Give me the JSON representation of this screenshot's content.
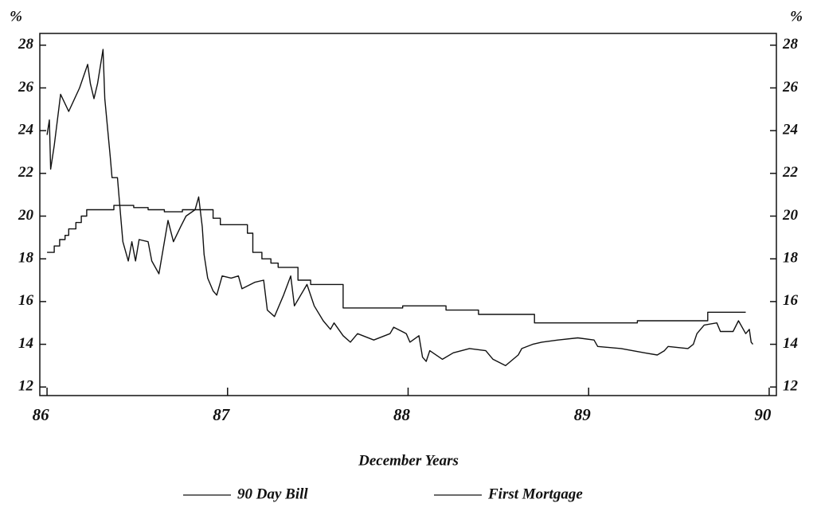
{
  "chart_data": {
    "type": "line",
    "xlabel": "December Years",
    "ylabel": "%",
    "y2label": "%",
    "xlim": [
      85.96,
      90.04
    ],
    "xticks": [
      86,
      87,
      88,
      89,
      90
    ],
    "ylim": [
      11.6,
      28.55
    ],
    "yticks": [
      12,
      14,
      16,
      18,
      20,
      22,
      24,
      26,
      28
    ],
    "y2lim": [
      11.6,
      28.55
    ],
    "y2ticks": [
      12,
      14,
      16,
      18,
      20,
      22,
      24,
      26,
      28
    ],
    "series": [
      {
        "name": "90 Day Bill",
        "color": "#111111",
        "x": [
          86.0,
          86.013,
          86.02,
          86.04,
          86.075,
          86.12,
          86.18,
          86.225,
          86.24,
          86.26,
          86.28,
          86.31,
          86.32,
          86.35,
          86.36,
          86.39,
          86.41,
          86.42,
          86.45,
          86.47,
          86.49,
          86.51,
          86.56,
          86.58,
          86.62,
          86.67,
          86.7,
          86.74,
          86.77,
          86.82,
          86.84,
          86.86,
          86.87,
          86.89,
          86.92,
          86.94,
          86.97,
          87.02,
          87.06,
          87.08,
          87.15,
          87.2,
          87.22,
          87.26,
          87.31,
          87.35,
          87.37,
          87.44,
          87.48,
          87.53,
          87.57,
          87.59,
          87.64,
          87.68,
          87.72,
          87.81,
          87.9,
          87.92,
          87.99,
          88.01,
          88.06,
          88.08,
          88.1,
          88.12,
          88.19,
          88.25,
          88.34,
          88.43,
          88.47,
          88.54,
          88.61,
          88.63,
          88.69,
          88.74,
          88.83,
          88.94,
          89.03,
          89.05,
          89.18,
          89.31,
          89.38,
          89.42,
          89.44,
          89.55,
          89.58,
          89.6,
          89.64,
          89.71,
          89.73,
          89.8,
          89.83,
          89.87,
          89.89,
          89.9,
          89.91
        ],
        "values": [
          23.8,
          24.5,
          22.2,
          23.3,
          25.7,
          24.9,
          26.0,
          27.1,
          26.2,
          25.5,
          26.2,
          27.8,
          25.5,
          22.8,
          21.8,
          21.8,
          19.8,
          18.8,
          17.9,
          18.8,
          17.9,
          18.9,
          18.8,
          17.9,
          17.3,
          19.8,
          18.8,
          19.5,
          20.0,
          20.3,
          20.9,
          19.5,
          18.2,
          17.1,
          16.5,
          16.3,
          17.2,
          17.1,
          17.2,
          16.6,
          16.9,
          17.0,
          15.6,
          15.3,
          16.3,
          17.2,
          15.8,
          16.8,
          15.8,
          15.1,
          14.7,
          15.0,
          14.4,
          14.1,
          14.5,
          14.2,
          14.5,
          14.8,
          14.5,
          14.1,
          14.4,
          13.4,
          13.2,
          13.7,
          13.3,
          13.6,
          13.8,
          13.7,
          13.3,
          13.0,
          13.5,
          13.8,
          14.0,
          14.1,
          14.2,
          14.3,
          14.2,
          13.9,
          13.8,
          13.6,
          13.5,
          13.7,
          13.9,
          13.8,
          14.0,
          14.5,
          14.9,
          15.0,
          14.6,
          14.6,
          15.1,
          14.5,
          14.7,
          14.1,
          14.0
        ]
      },
      {
        "name": "First Mortgage",
        "color": "#111111",
        "x": [
          86.0,
          86.04,
          86.04,
          86.07,
          86.07,
          86.1,
          86.1,
          86.12,
          86.12,
          86.16,
          86.16,
          86.19,
          86.19,
          86.22,
          86.22,
          86.37,
          86.37,
          86.48,
          86.48,
          86.56,
          86.56,
          86.65,
          86.65,
          86.75,
          86.75,
          86.92,
          86.92,
          86.96,
          86.96,
          87.11,
          87.11,
          87.14,
          87.14,
          87.19,
          87.19,
          87.24,
          87.24,
          87.28,
          87.28,
          87.39,
          87.39,
          87.46,
          87.46,
          87.64,
          87.64,
          87.97,
          87.97,
          88.21,
          88.21,
          88.39,
          88.39,
          88.7,
          88.7,
          89.27,
          89.27,
          89.66,
          89.66,
          89.87
        ],
        "values": [
          18.3,
          18.3,
          18.6,
          18.6,
          18.9,
          18.9,
          19.1,
          19.1,
          19.4,
          19.4,
          19.7,
          19.7,
          20.0,
          20.0,
          20.3,
          20.3,
          20.5,
          20.5,
          20.4,
          20.4,
          20.3,
          20.3,
          20.2,
          20.2,
          20.3,
          20.3,
          19.9,
          19.9,
          19.6,
          19.6,
          19.2,
          19.2,
          18.3,
          18.3,
          18.0,
          18.0,
          17.8,
          17.8,
          17.6,
          17.6,
          17.0,
          17.0,
          16.8,
          16.8,
          15.7,
          15.7,
          15.8,
          15.8,
          15.6,
          15.6,
          15.4,
          15.4,
          15.0,
          15.0,
          15.1,
          15.1,
          15.5,
          15.5
        ]
      }
    ]
  }
}
